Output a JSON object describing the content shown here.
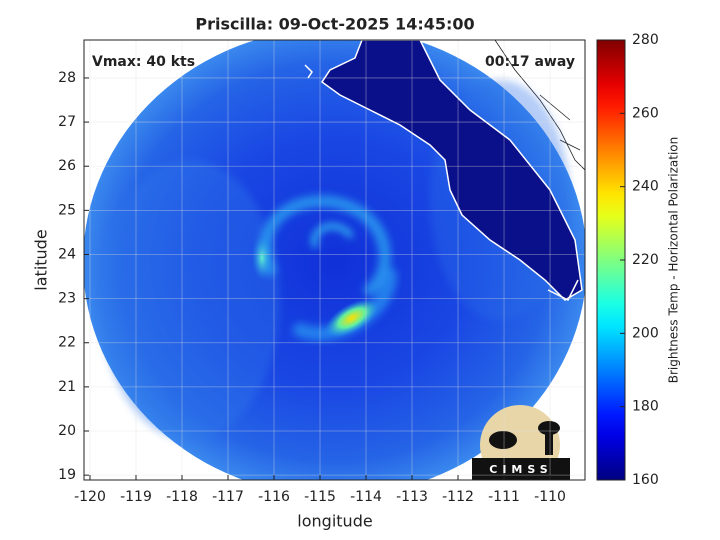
{
  "chart_data": {
    "type": "image",
    "title": "Priscilla: 09-Oct-2025 14:45:00",
    "xlabel": "longitude",
    "ylabel": "latitude",
    "annotations": [
      "Vmax: 40 kts",
      "00:17 away"
    ],
    "xlim": [
      -120.13,
      -109.24
    ],
    "ylim": [
      18.89,
      28.86
    ],
    "xticks": [
      -120,
      -119,
      -118,
      -117,
      -116,
      -115,
      -114,
      -113,
      -112,
      -111,
      -110
    ],
    "yticks": [
      19,
      20,
      21,
      22,
      23,
      24,
      25,
      26,
      27,
      28
    ],
    "grid": true,
    "colorbar": {
      "label": "Brightness Temp - Horizontal Polarization",
      "clim": [
        160,
        280
      ],
      "ticks": [
        160,
        180,
        200,
        220,
        240,
        260,
        280
      ],
      "colormap": "jet"
    },
    "logo_text": "CIMSS"
  }
}
